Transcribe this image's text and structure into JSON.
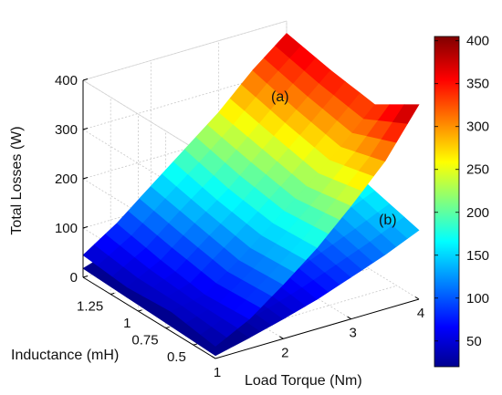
{
  "chart_data": {
    "type": "surface3d",
    "title": "",
    "xlabel": "Load Torque (Nm)",
    "ylabel": "Inductance (mH)",
    "zlabel": "Total Losses (W)",
    "x_ticks": [
      "1",
      "2",
      "3",
      "4"
    ],
    "y_ticks": [
      "0.5",
      "0.75",
      "1",
      "1.25"
    ],
    "z_ticks": [
      "0",
      "100",
      "200",
      "300",
      "400"
    ],
    "xlim": [
      1,
      4
    ],
    "ylim": [
      0.3,
      1.5
    ],
    "zlim": [
      0,
      400
    ],
    "grid": true,
    "colormap": "jet",
    "colorbar": {
      "ticks": [
        "50",
        "100",
        "150",
        "200",
        "250",
        "300",
        "350",
        "400"
      ],
      "range": [
        20,
        405
      ],
      "colors": [
        "#00008f",
        "#0000ff",
        "#00ffff",
        "#ffff00",
        "#ff0000",
        "#800000"
      ]
    },
    "torque": [
      1,
      1.5,
      2,
      2.5,
      3,
      3.5,
      4
    ],
    "inductance": [
      0.3,
      0.7,
      1.1,
      1.5
    ],
    "series": [
      {
        "name": "(a)",
        "z": [
          [
            25,
            40,
            35,
            45
          ],
          [
            60,
            55,
            70,
            90
          ],
          [
            110,
            105,
            125,
            145
          ],
          [
            165,
            160,
            175,
            200
          ],
          [
            230,
            215,
            235,
            255
          ],
          [
            300,
            275,
            295,
            320
          ],
          [
            395,
            340,
            355,
            375
          ]
        ]
      },
      {
        "name": "(b)",
        "z": [
          [
            6,
            10,
            14,
            18
          ],
          [
            22,
            28,
            34,
            40
          ],
          [
            40,
            50,
            60,
            70
          ],
          [
            60,
            76,
            90,
            105
          ],
          [
            85,
            105,
            125,
            140
          ],
          [
            110,
            135,
            158,
            175
          ],
          [
            140,
            165,
            190,
            210
          ]
        ]
      }
    ]
  }
}
